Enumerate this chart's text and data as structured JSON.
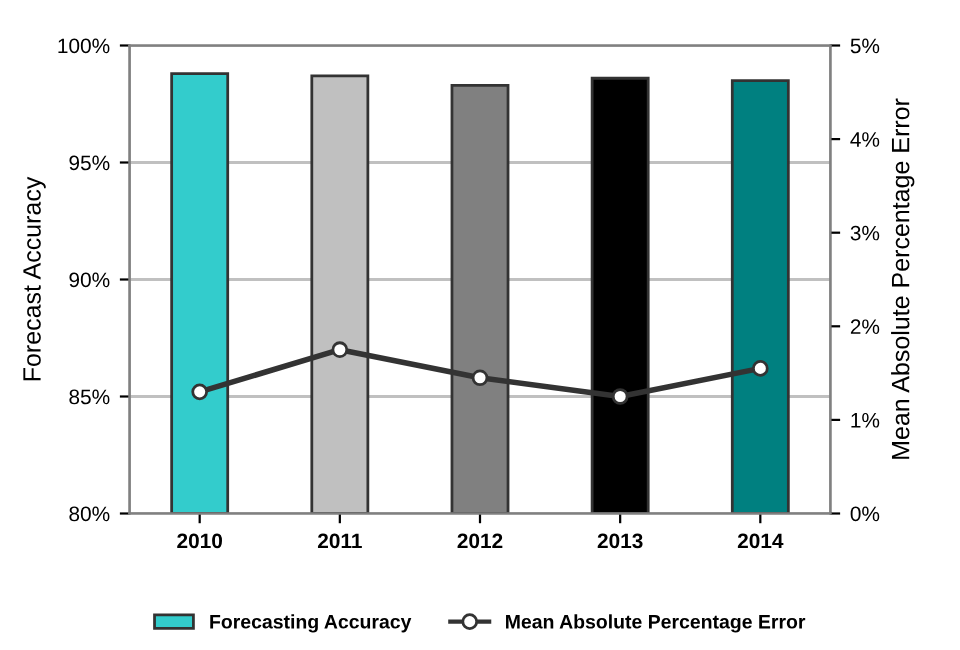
{
  "chart_data": {
    "type": "bar",
    "categories": [
      "2010",
      "2011",
      "2012",
      "2013",
      "2014"
    ],
    "series": [
      {
        "name": "Forecasting Accuracy",
        "colors": [
          "#33cccc",
          "#c0c0c0",
          "#808080",
          "#000000",
          "#008080"
        ],
        "color": "#33cccc",
        "values": [
          98.8,
          98.7,
          98.3,
          98.6,
          98.5
        ]
      },
      {
        "name": "Mean Absolute Percentage Error",
        "type": "line",
        "axis": "y2",
        "color": "#333333",
        "marker": "circle",
        "values": [
          1.3,
          1.75,
          1.45,
          1.25,
          1.55
        ]
      }
    ],
    "ylabel": "Forecast Accuracy",
    "y2label": "Mean Absolute Percentage Error",
    "ylim": [
      80,
      100
    ],
    "yticks": [
      {
        "value": 80,
        "label": "80%"
      },
      {
        "value": 85,
        "label": "85%"
      },
      {
        "value": 90,
        "label": "90%"
      },
      {
        "value": 95,
        "label": "95%"
      },
      {
        "value": 100,
        "label": "100%"
      }
    ],
    "y2lim": [
      0,
      5
    ],
    "y2ticks": [
      {
        "value": 0,
        "label": "0%"
      },
      {
        "value": 1,
        "label": "1%"
      },
      {
        "value": 2,
        "label": "2%"
      },
      {
        "value": 3,
        "label": "3%"
      },
      {
        "value": 4,
        "label": "4%"
      },
      {
        "value": 5,
        "label": "5%"
      }
    ],
    "grid": "y",
    "legend": "bottom"
  }
}
